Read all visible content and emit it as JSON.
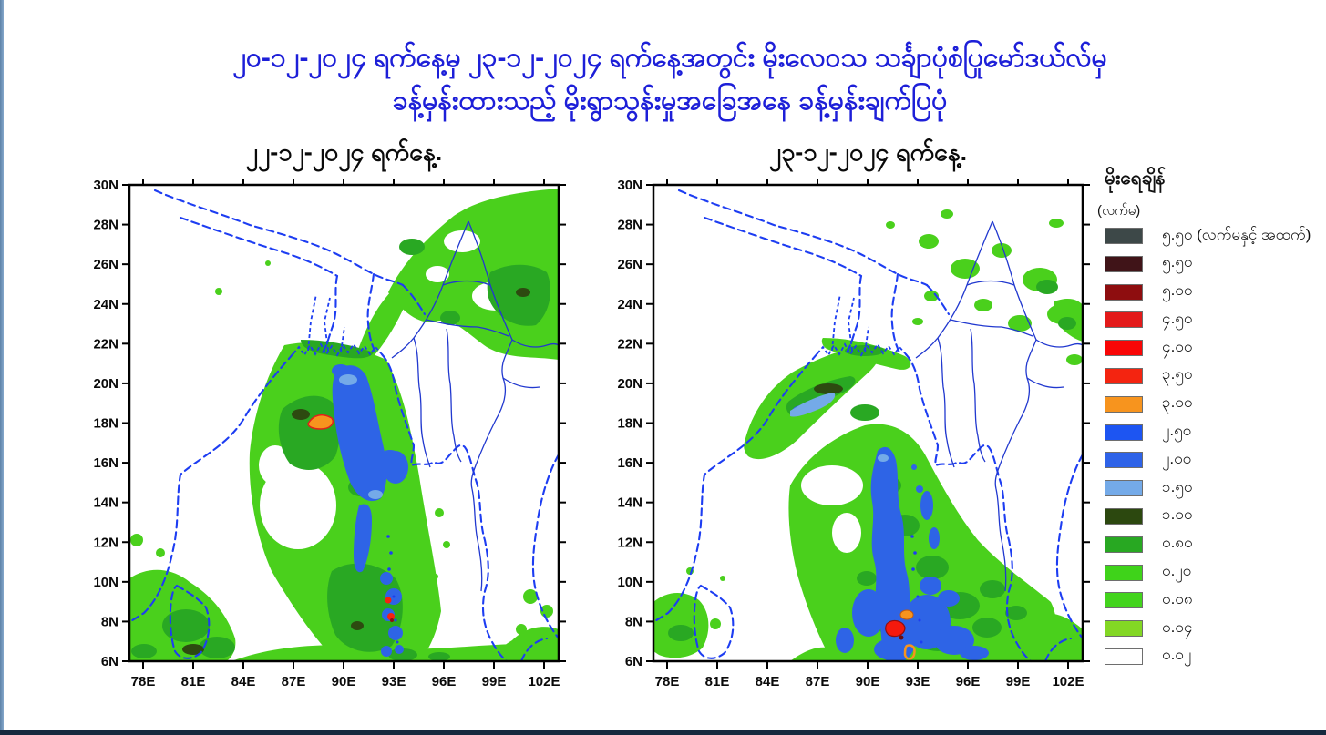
{
  "page": {
    "title_line1": "၂၀-၁၂-၂၀၂၄ ရက်နေ့မှ ၂၃-၁၂-၂၀၂၄ ရက်နေ့အတွင်း မိုးလေဝသ သင်္ချာပုံစံပြုမော်ဒယ်လ်မှ",
    "title_line2": "ခန့်မှန်းထားသည့် မိုးရွာသွန်းမှုအခြေအနေ ခန့်မှန်းချက်ပြပုံ"
  },
  "maps": [
    {
      "title": "၂၂-၁၂-၂၀၂၄ ရက်နေ့."
    },
    {
      "title": "၂၃-၁၂-၂၀၂၄ ရက်နေ့."
    }
  ],
  "axes": {
    "lat_ticks": [
      "30N",
      "28N",
      "26N",
      "24N",
      "22N",
      "20N",
      "18N",
      "16N",
      "14N",
      "12N",
      "10N",
      "8N",
      "6N"
    ],
    "lon_ticks": [
      "78E",
      "81E",
      "84E",
      "87E",
      "90E",
      "93E",
      "96E",
      "99E",
      "102E"
    ]
  },
  "legend": {
    "title": "မိုးရေချိန်",
    "subtitle": "(လက်မ)",
    "entries": [
      {
        "color": "#3d4848",
        "label": "၅.၅၀ (လက်မနှင့် အထက်)"
      },
      {
        "color": "#401418",
        "label": "၅.၅၀"
      },
      {
        "color": "#8e0d0f",
        "label": "၅.၀၀"
      },
      {
        "color": "#e31a1a",
        "label": "၄.၅၀"
      },
      {
        "color": "#f90606",
        "label": "၄.၀၀"
      },
      {
        "color": "#f42410",
        "label": "၃.၅၀"
      },
      {
        "color": "#f7941e",
        "label": "၃.၀၀"
      },
      {
        "color": "#1d55f2",
        "label": "၂.၅၀"
      },
      {
        "color": "#2e63e8",
        "label": "၂.၀၀"
      },
      {
        "color": "#74aae8",
        "label": "၁.၅၀"
      },
      {
        "color": "#2c480f",
        "label": "၁.၀၀"
      },
      {
        "color": "#28a822",
        "label": "၀.၈၀"
      },
      {
        "color": "#3fd31a",
        "label": "၀.၂၀"
      },
      {
        "color": "#43d41d",
        "label": "၀.၀၈"
      },
      {
        "color": "#83d724",
        "label": "၀.၀၄"
      },
      {
        "color": "#ffffff",
        "label": "၀.၀၂"
      }
    ]
  },
  "chart_data": {
    "type": "map",
    "subtype": "rainfall-forecast-contour",
    "panels": [
      {
        "date_label": "၂၂-၁၂-၂၀၂၄ ရက်နေ့.",
        "lon_range": [
          "78E",
          "102E"
        ],
        "lat_range": [
          "6N",
          "30N"
        ]
      },
      {
        "date_label": "၂၃-၁၂-၂၀၂၄ ရက်နေ့.",
        "lon_range": [
          "78E",
          "102E"
        ],
        "lat_range": [
          "6N",
          "30N"
        ]
      }
    ],
    "scale_values_inches": [
      "5.50+",
      "5.50",
      "5.00",
      "4.50",
      "4.00",
      "3.50",
      "3.00",
      "2.50",
      "2.00",
      "1.50",
      "1.00",
      "0.80",
      "0.20",
      "0.08",
      "0.04",
      "0.02"
    ],
    "units": "လက်မ (inches)"
  }
}
